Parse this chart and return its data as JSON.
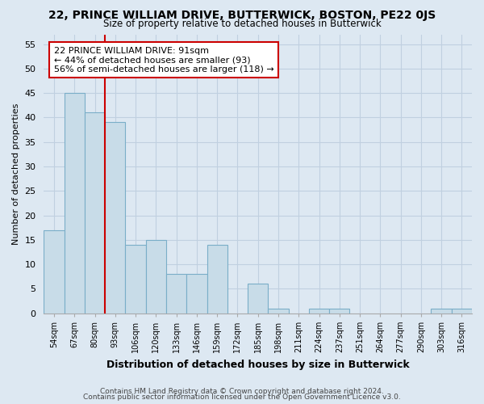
{
  "title": "22, PRINCE WILLIAM DRIVE, BUTTERWICK, BOSTON, PE22 0JS",
  "subtitle": "Size of property relative to detached houses in Butterwick",
  "xlabel": "Distribution of detached houses by size in Butterwick",
  "ylabel": "Number of detached properties",
  "bin_labels": [
    "54sqm",
    "67sqm",
    "80sqm",
    "93sqm",
    "106sqm",
    "120sqm",
    "133sqm",
    "146sqm",
    "159sqm",
    "172sqm",
    "185sqm",
    "198sqm",
    "211sqm",
    "224sqm",
    "237sqm",
    "251sqm",
    "264sqm",
    "277sqm",
    "290sqm",
    "303sqm",
    "316sqm"
  ],
  "bar_heights": [
    17,
    45,
    41,
    39,
    14,
    15,
    8,
    8,
    14,
    0,
    6,
    1,
    0,
    1,
    1,
    0,
    0,
    0,
    0,
    1,
    1
  ],
  "bar_color": "#c8dce8",
  "bar_edge_color": "#7aaec8",
  "vline_x_bin": 3,
  "property_line_label": "22 PRINCE WILLIAM DRIVE: 91sqm",
  "annotation_line1": "← 44% of detached houses are smaller (93)",
  "annotation_line2": "56% of semi-detached houses are larger (118) →",
  "annotation_box_color": "#ffffff",
  "annotation_box_edgecolor": "#cc0000",
  "vline_color": "#cc0000",
  "ylim": [
    0,
    57
  ],
  "yticks": [
    0,
    5,
    10,
    15,
    20,
    25,
    30,
    35,
    40,
    45,
    50,
    55
  ],
  "footer1": "Contains HM Land Registry data © Crown copyright and database right 2024.",
  "footer2": "Contains public sector information licensed under the Open Government Licence v3.0.",
  "bg_color": "#dde8f2",
  "plot_bg_color": "#dde8f2",
  "grid_color": "#c0d0e0"
}
